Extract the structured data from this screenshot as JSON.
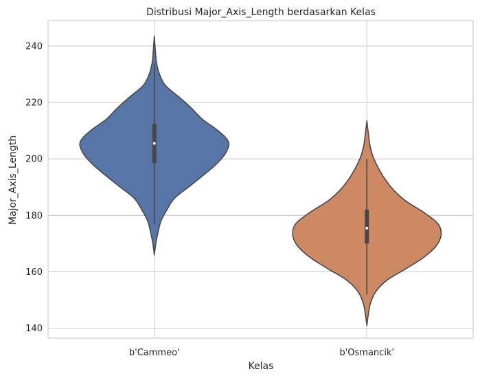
{
  "chart_data": {
    "type": "violin",
    "title": "Distribusi Major_Axis_Length berdasarkan Kelas",
    "xlabel": "Kelas",
    "ylabel": "Major_Axis_Length",
    "ylim": [
      136.5,
      249
    ],
    "yticks": [
      140,
      160,
      180,
      200,
      220,
      240
    ],
    "grid": true,
    "categories": [
      "b'Cammeo'",
      "b'Osmancik'"
    ],
    "colors": [
      "#5875a8",
      "#cd8964"
    ],
    "violins": [
      {
        "category": "b'Cammeo'",
        "min": 166,
        "max": 243.5,
        "q1": 198.5,
        "median": 205.5,
        "q3": 212.5,
        "whisker_low": 177,
        "whisker_high": 234,
        "profile": [
          [
            166,
            0.0
          ],
          [
            170,
            0.02
          ],
          [
            174,
            0.05
          ],
          [
            178,
            0.09
          ],
          [
            182,
            0.17
          ],
          [
            186,
            0.27
          ],
          [
            190,
            0.46
          ],
          [
            194,
            0.65
          ],
          [
            198,
            0.83
          ],
          [
            202,
            0.96
          ],
          [
            206,
            1.0
          ],
          [
            210,
            0.86
          ],
          [
            214,
            0.65
          ],
          [
            218,
            0.5
          ],
          [
            222,
            0.33
          ],
          [
            226,
            0.15
          ],
          [
            230,
            0.07
          ],
          [
            234,
            0.03
          ],
          [
            238,
            0.015
          ],
          [
            243.5,
            0.0
          ]
        ]
      },
      {
        "category": "b'Osmancik'",
        "min": 141,
        "max": 213.5,
        "q1": 170,
        "median": 175.5,
        "q3": 182,
        "whisker_low": 152,
        "whisker_high": 200,
        "profile": [
          [
            141,
            0.0
          ],
          [
            145,
            0.02
          ],
          [
            149,
            0.05
          ],
          [
            153,
            0.12
          ],
          [
            157,
            0.27
          ],
          [
            161,
            0.52
          ],
          [
            165,
            0.76
          ],
          [
            169,
            0.93
          ],
          [
            173,
            1.0
          ],
          [
            177,
            0.96
          ],
          [
            181,
            0.77
          ],
          [
            185,
            0.53
          ],
          [
            189,
            0.36
          ],
          [
            193,
            0.24
          ],
          [
            197,
            0.15
          ],
          [
            201,
            0.08
          ],
          [
            205,
            0.04
          ],
          [
            209,
            0.02
          ],
          [
            213.5,
            0.0
          ]
        ]
      }
    ]
  }
}
